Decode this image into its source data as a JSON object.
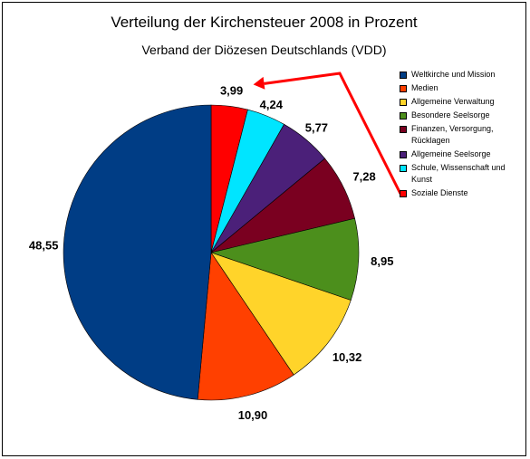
{
  "chart_data": {
    "type": "pie",
    "title": "Verteilung der Kirchensteuer 2008 in Prozent",
    "subtitle": "Verband der Diözesen Deutschlands (VDD)",
    "legend_position": "right",
    "slices": [
      {
        "label": "Soziale Dienste",
        "value": 3.99,
        "value_label": "3,99",
        "color": "#ff0000"
      },
      {
        "label": "Schule, Wissenschaft und Kunst",
        "value": 4.24,
        "value_label": "4,24",
        "color": "#00e5ff"
      },
      {
        "label": "Allgemeine Seelsorge",
        "value": 5.77,
        "value_label": "5,77",
        "color": "#4b2079"
      },
      {
        "label": "Finanzen, Versorgung, Rücklagen",
        "value": 7.28,
        "value_label": "7,28",
        "color": "#7a0020"
      },
      {
        "label": "Besondere Seelsorge",
        "value": 8.95,
        "value_label": "8,95",
        "color": "#4c8f1c"
      },
      {
        "label": "Allgemeine Verwaltung",
        "value": 10.32,
        "value_label": "10,32",
        "color": "#ffd42a"
      },
      {
        "label": "Medien",
        "value": 10.9,
        "value_label": "10,90",
        "color": "#ff4000"
      },
      {
        "label": "Weltkirche und Mission",
        "value": 48.55,
        "value_label": "48,55",
        "color": "#003d85"
      }
    ],
    "legend": [
      "Weltkirche und Mission",
      "Medien",
      "Allgemeine Verwaltung",
      "Besondere Seelsorge",
      "Finanzen, Versorgung, Rücklagen",
      "Allgemeine Seelsorge",
      "Schule, Wissenschaft und Kunst",
      "Soziale Dienste"
    ],
    "annotation": {
      "type": "arrow",
      "color": "#ff0000",
      "from": "Soziale Dienste",
      "to": "3,99"
    }
  }
}
